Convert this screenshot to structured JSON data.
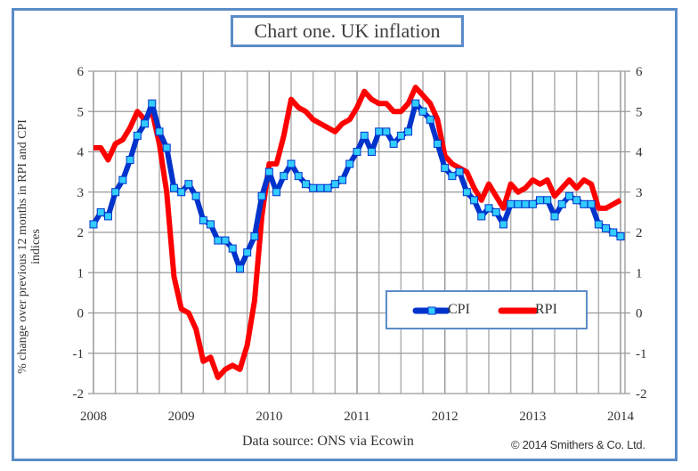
{
  "chart_data": {
    "type": "line",
    "title": "Chart one. UK inflation",
    "ylabel": "% change over previous 12 months in RPI and CPI indices",
    "xlabel": "",
    "x_ticks": [
      "2008",
      "2009",
      "2010",
      "2011",
      "2012",
      "2013",
      "2014"
    ],
    "y_ticks": [
      "6",
      "5",
      "4",
      "3",
      "2",
      "1",
      "0",
      "-1",
      "-2"
    ],
    "ylim": [
      -2,
      6
    ],
    "xlim": [
      2008,
      2014
    ],
    "grid": true,
    "legend_position": "bottom-right",
    "x_start": "2008-01",
    "frequency": "monthly",
    "series": [
      {
        "name": "CPI",
        "color": "#0033cc",
        "marker_color": "#33ccff",
        "values": [
          2.2,
          2.5,
          2.4,
          3.0,
          3.3,
          3.8,
          4.4,
          4.7,
          5.2,
          4.5,
          4.1,
          3.1,
          3.0,
          3.2,
          2.9,
          2.3,
          2.2,
          1.8,
          1.8,
          1.6,
          1.1,
          1.5,
          1.9,
          2.9,
          3.5,
          3.0,
          3.4,
          3.7,
          3.4,
          3.2,
          3.1,
          3.1,
          3.1,
          3.2,
          3.3,
          3.7,
          4.0,
          4.4,
          4.0,
          4.5,
          4.5,
          4.2,
          4.4,
          4.5,
          5.2,
          5.0,
          4.8,
          4.2,
          3.6,
          3.4,
          3.5,
          3.0,
          2.8,
          2.4,
          2.6,
          2.5,
          2.2,
          2.7,
          2.7,
          2.7,
          2.7,
          2.8,
          2.8,
          2.4,
          2.7,
          2.9,
          2.8,
          2.7,
          2.7,
          2.2,
          2.1,
          2.0,
          1.9
        ]
      },
      {
        "name": "RPI",
        "color": "#ff0000",
        "values": [
          4.1,
          4.1,
          3.8,
          4.2,
          4.3,
          4.6,
          5.0,
          4.8,
          5.0,
          4.2,
          3.0,
          0.9,
          0.1,
          0.0,
          -0.4,
          -1.2,
          -1.1,
          -1.6,
          -1.4,
          -1.3,
          -1.4,
          -0.8,
          0.3,
          2.4,
          3.7,
          3.7,
          4.4,
          5.3,
          5.1,
          5.0,
          4.8,
          4.7,
          4.6,
          4.5,
          4.7,
          4.8,
          5.1,
          5.5,
          5.3,
          5.2,
          5.2,
          5.0,
          5.0,
          5.2,
          5.6,
          5.4,
          5.2,
          4.8,
          3.9,
          3.7,
          3.6,
          3.5,
          3.1,
          2.8,
          3.2,
          2.9,
          2.6,
          3.2,
          3.0,
          3.1,
          3.3,
          3.2,
          3.3,
          2.9,
          3.1,
          3.3,
          3.1,
          3.3,
          3.2,
          2.6,
          2.6,
          2.7,
          2.8
        ]
      }
    ]
  },
  "footer": {
    "source": "Data source: ONS via Ecowin",
    "copyright": "© 2014 Smithers & Co. Ltd."
  }
}
